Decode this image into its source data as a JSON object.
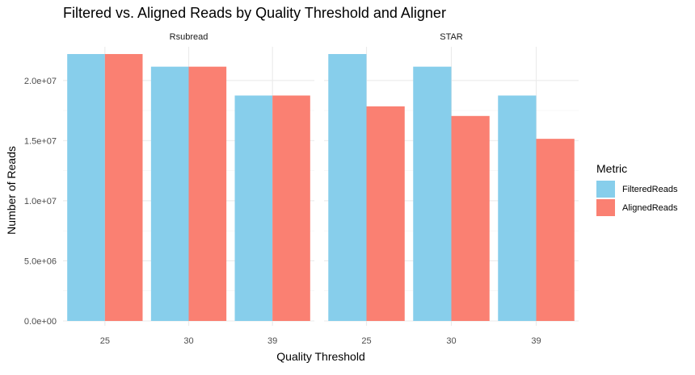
{
  "chart_data": {
    "type": "bar",
    "title": "Filtered vs. Aligned Reads by Quality Threshold and Aligner",
    "xlabel": "Quality Threshold",
    "ylabel": "Number of Reads",
    "categories": [
      "25",
      "30",
      "39"
    ],
    "ylim": [
      0,
      22000000
    ],
    "y_ticks": [
      0,
      5000000,
      10000000,
      15000000,
      20000000
    ],
    "y_tick_labels": [
      "0.0e+00",
      "5.0e+06",
      "1.0e+07",
      "1.5e+07",
      "2.0e+07"
    ],
    "grid": true,
    "legend": {
      "title": "Metric",
      "position": "right",
      "entries": [
        "FilteredReads",
        "AlignedReads"
      ]
    },
    "facets": [
      {
        "name": "Rsubread",
        "series": [
          {
            "name": "FilteredReads",
            "color": "#87CEEB",
            "values": [
              22200000,
              21150000,
              18750000
            ]
          },
          {
            "name": "AlignedReads",
            "color": "#FA8072",
            "values": [
              22200000,
              21150000,
              18750000
            ]
          }
        ]
      },
      {
        "name": "STAR",
        "series": [
          {
            "name": "FilteredReads",
            "color": "#87CEEB",
            "values": [
              22200000,
              21150000,
              18750000
            ]
          },
          {
            "name": "AlignedReads",
            "color": "#FA8072",
            "values": [
              17850000,
              17050000,
              15150000
            ]
          }
        ]
      }
    ]
  }
}
